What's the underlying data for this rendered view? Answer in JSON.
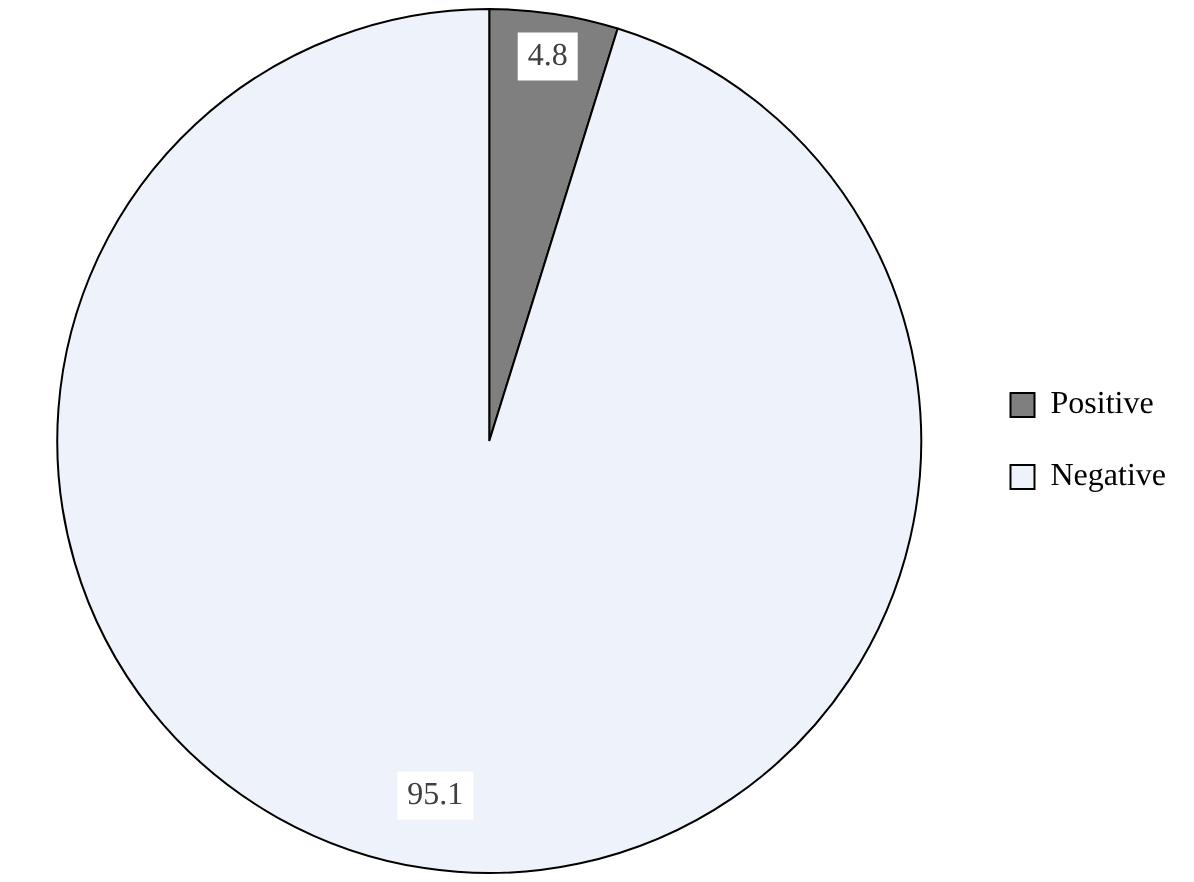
{
  "chart_data": {
    "type": "pie",
    "categories": [
      "Positive",
      "Negative"
    ],
    "values": [
      4.8,
      95.1
    ],
    "colors": [
      "#7f7f7f",
      "#eef3fb"
    ],
    "data_labels": true,
    "legend": "right"
  }
}
